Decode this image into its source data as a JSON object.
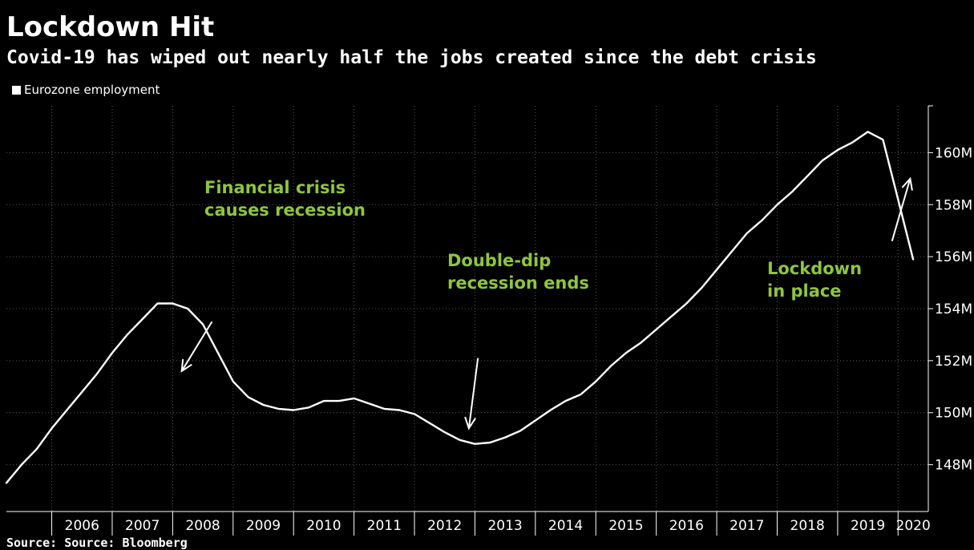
{
  "header": {
    "title": "Lockdown Hit",
    "subtitle": "Covid-19 has wiped out nearly half the jobs created since the debt crisis"
  },
  "source": "Source: Source: Bloomberg",
  "colors": {
    "background": "#000000",
    "line": "#ffffff",
    "annotation": "#8dc63f",
    "grid": "#5a5a5a"
  },
  "chart_data": {
    "type": "line",
    "title": "Lockdown Hit",
    "subtitle": "Covid-19 has wiped out nearly half the jobs created since the debt crisis",
    "xlabel": "",
    "ylabel": "",
    "grid": true,
    "legend": "top-left",
    "xlim": [
      2005.25,
      2020.5
    ],
    "ylim": [
      146.2,
      161.8
    ],
    "x_tick_labels": [
      "2006",
      "2007",
      "2008",
      "2009",
      "2010",
      "2011",
      "2012",
      "2013",
      "2014",
      "2015",
      "2016",
      "2017",
      "2018",
      "2019",
      "2020"
    ],
    "y_ticks": [
      148,
      150,
      152,
      154,
      156,
      158,
      160
    ],
    "y_tick_labels": [
      "148M",
      "150M",
      "152M",
      "154M",
      "156M",
      "158M",
      "160M"
    ],
    "series": [
      {
        "name": "Eurozone employment",
        "x": [
          2005.25,
          2005.5,
          2005.75,
          2006.0,
          2006.25,
          2006.5,
          2006.75,
          2007.0,
          2007.25,
          2007.5,
          2007.75,
          2008.0,
          2008.25,
          2008.5,
          2008.75,
          2009.0,
          2009.25,
          2009.5,
          2009.75,
          2010.0,
          2010.25,
          2010.5,
          2010.75,
          2011.0,
          2011.25,
          2011.5,
          2011.75,
          2012.0,
          2012.25,
          2012.5,
          2012.75,
          2013.0,
          2013.25,
          2013.5,
          2013.75,
          2014.0,
          2014.25,
          2014.5,
          2014.75,
          2015.0,
          2015.25,
          2015.5,
          2015.75,
          2016.0,
          2016.25,
          2016.5,
          2016.75,
          2017.0,
          2017.25,
          2017.5,
          2017.75,
          2018.0,
          2018.25,
          2018.5,
          2018.75,
          2019.0,
          2019.25,
          2019.5,
          2019.75,
          2020.0,
          2020.25
        ],
        "values": [
          147.3,
          148.0,
          148.6,
          149.4,
          150.1,
          150.8,
          151.5,
          152.3,
          153.0,
          153.6,
          154.2,
          154.2,
          154.0,
          153.4,
          152.3,
          151.2,
          150.6,
          150.3,
          150.15,
          150.1,
          150.2,
          150.45,
          150.45,
          150.55,
          150.35,
          150.15,
          150.1,
          149.95,
          149.6,
          149.25,
          148.95,
          148.8,
          148.85,
          149.05,
          149.3,
          149.7,
          150.1,
          150.45,
          150.7,
          151.2,
          151.8,
          152.3,
          152.7,
          153.2,
          153.7,
          154.2,
          154.8,
          155.5,
          156.2,
          156.9,
          157.4,
          158.0,
          158.5,
          159.1,
          159.7,
          160.1,
          160.4,
          160.8,
          160.5,
          158.2,
          155.9
        ]
      }
    ],
    "annotations": [
      {
        "lines": [
          "Financial crisis",
          "causes recession"
        ],
        "arrow_from": [
          2008.65,
          153.5
        ],
        "arrow_to": [
          2008.15,
          151.6
        ]
      },
      {
        "lines": [
          "Double-dip",
          "recession ends"
        ],
        "arrow_from": [
          2013.05,
          152.1
        ],
        "arrow_to": [
          2012.9,
          149.4
        ]
      },
      {
        "lines": [
          "Lockdown",
          "in place"
        ],
        "arrow_from": [
          2019.9,
          156.6
        ],
        "arrow_to": [
          2020.2,
          159.0
        ]
      }
    ]
  }
}
